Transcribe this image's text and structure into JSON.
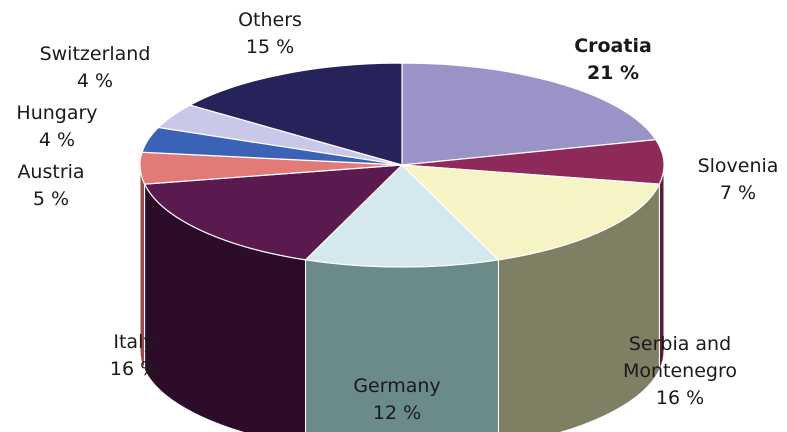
{
  "chart_data": {
    "type": "pie",
    "style": "3d-exploded-none",
    "title": "",
    "unit": "%",
    "slices": [
      {
        "name": "Croatia",
        "value": 21,
        "label": "Croatia",
        "value_label": "21 %",
        "color": "#9a93c8",
        "side": "#6f689e",
        "bold": true
      },
      {
        "name": "Slovenia",
        "value": 7,
        "label": "Slovenia",
        "value_label": "7 %",
        "color": "#8e2a5a",
        "side": "#5d1a3b"
      },
      {
        "name": "Serbia and Montenegro",
        "value": 16,
        "label": "Serbia and\nMontenegro",
        "value_label": "16 %",
        "color": "#f6f3c4",
        "side": "#7f8063"
      },
      {
        "name": "Germany",
        "value": 12,
        "label": "Germany",
        "value_label": "12 %",
        "color": "#d5e8ee",
        "side": "#6b8a8a"
      },
      {
        "name": "Italy",
        "value": 16,
        "label": "Italy",
        "value_label": "16 %",
        "color": "#5b1a4f",
        "side": "#2c0c28"
      },
      {
        "name": "Austria",
        "value": 5,
        "label": "Austria",
        "value_label": "5 %",
        "color": "#e27a78",
        "side": "#9b4c4a"
      },
      {
        "name": "Hungary",
        "value": 4,
        "label": "Hungary",
        "value_label": "4 %",
        "color": "#3a63b8",
        "side": "#233e78"
      },
      {
        "name": "Switzerland",
        "value": 4,
        "label": "Switzerland",
        "value_label": "4 %",
        "color": "#c9c8e8",
        "side": "#8b8aab"
      },
      {
        "name": "Others",
        "value": 15,
        "label": "Others",
        "value_label": "15 %",
        "color": "#25235a",
        "side": "#15143a"
      }
    ]
  }
}
